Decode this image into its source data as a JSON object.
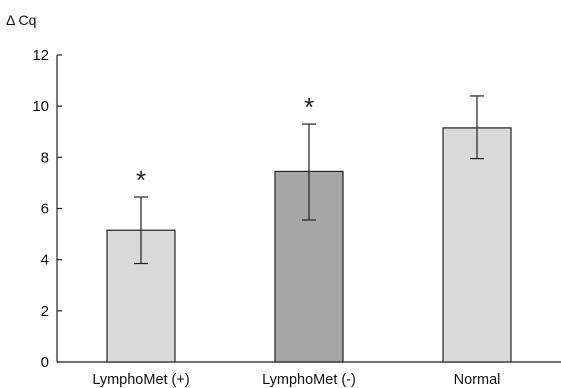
{
  "chart_data": {
    "type": "bar",
    "ylabel": "Δ Cq",
    "xlabel": "",
    "ylim": [
      0,
      12
    ],
    "yticks": [
      0,
      2,
      4,
      6,
      8,
      10,
      12
    ],
    "categories": [
      "LymphoMet (+)",
      "LymphoMet (-)",
      "Normal"
    ],
    "values": [
      5.15,
      7.45,
      9.15
    ],
    "error_upper": [
      6.45,
      9.3,
      10.4
    ],
    "error_lower": [
      3.85,
      5.55,
      7.95
    ],
    "significance": [
      "*",
      "*",
      ""
    ],
    "bar_colors": [
      "#d9d9d9",
      "#a6a6a6",
      "#d9d9d9"
    ],
    "grid": false,
    "legend": "none"
  }
}
